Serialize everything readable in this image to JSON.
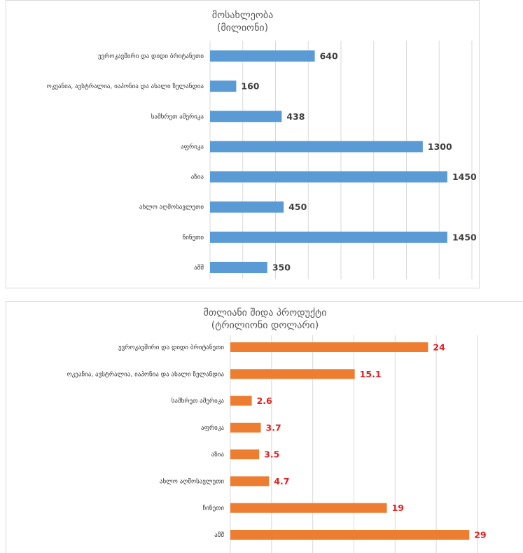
{
  "chart_data": [
    {
      "type": "bar",
      "orientation": "horizontal",
      "title": "მოსახლეობა",
      "subtitle": "(მილიონი)",
      "categories": [
        "ევროკავშირი და დიდი ბრიტანეთი",
        "ოკეანია, ავსტრალია, იაპონია და ახალი ზელანდია",
        "სამხრეთ ამერიკა",
        "აფრიკა",
        "აზია",
        "ახლო აღმოსავლეთი",
        "ჩინეთი",
        "აშშ"
      ],
      "values": [
        640,
        160,
        438,
        1300,
        1450,
        450,
        1450,
        350
      ],
      "data_labels": [
        "640",
        "160",
        "438",
        "1300",
        "1450",
        "450",
        "1450",
        "350"
      ],
      "xlim": [
        0,
        1600
      ],
      "grid": "vertical",
      "color": "#5b9bd5",
      "label_color": "#404040"
    },
    {
      "type": "bar",
      "orientation": "horizontal",
      "title": "მთლიანი შიდა პროდუქტი",
      "subtitle": "(ტრილიონი დოლარი)",
      "categories": [
        "ევროკავშირი და დიდი ბრიტანეთი",
        "ოკეანია, ავსტრალია, იაპონია და ახალი ზელანდია",
        "სამხრეთ ამერიკა",
        "აფრიკა",
        "აზია",
        "ახლო აღმოსავლეთი",
        "ჩინეთი",
        "აშშ"
      ],
      "values": [
        24,
        15.1,
        2.6,
        3.7,
        3.5,
        4.7,
        19,
        29
      ],
      "data_labels": [
        "24",
        "15.1",
        "2.6",
        "3.7",
        "3.5",
        "4.7",
        "19",
        "29"
      ],
      "xlim": [
        0,
        30
      ],
      "grid": "vertical",
      "color": "#ed7d31",
      "label_color": "#e02020"
    }
  ]
}
